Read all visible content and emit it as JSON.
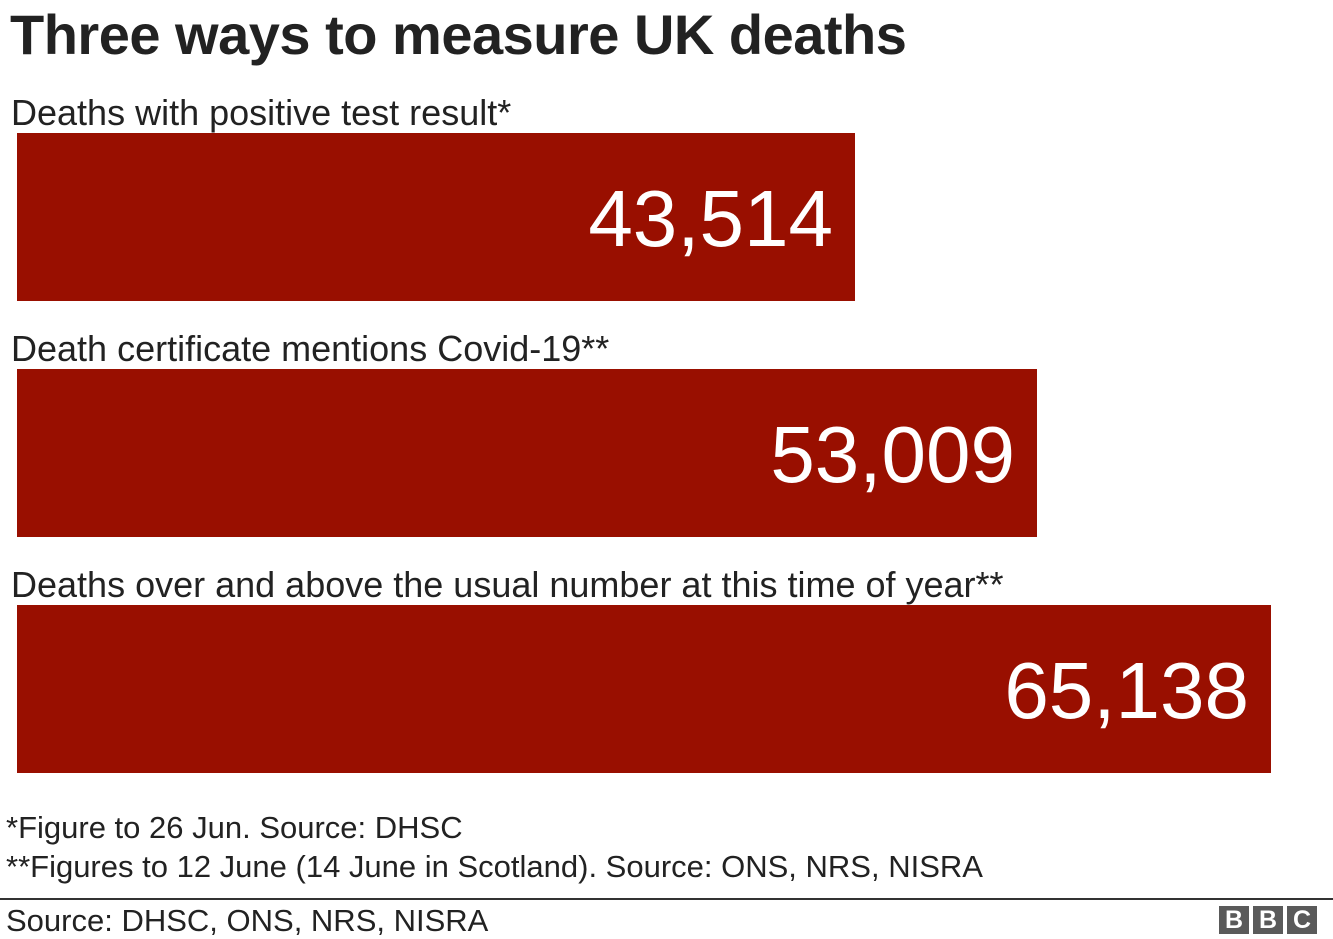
{
  "chart_data": {
    "type": "bar",
    "orientation": "horizontal",
    "title": "Three ways to measure UK deaths",
    "categories": [
      "Deaths with positive test result*",
      "Death certificate mentions Covid-19**",
      "Deaths over and above the usual number at this time of year**"
    ],
    "values": [
      43514,
      53009,
      65138
    ],
    "value_labels": [
      "43,514",
      "53,009",
      "65,138"
    ],
    "xlabel": "",
    "ylabel": "",
    "xlim": [
      0,
      68000
    ],
    "grid": false,
    "bar_color": "#990f00"
  },
  "footnotes": [
    "*Figure to 26 Jun. Source: DHSC",
    "**Figures to 12 June (14 June in Scotland). Source: ONS, NRS, NISRA"
  ],
  "source": "Source: DHSC, ONS, NRS, NISRA",
  "logo": {
    "letters": [
      "B",
      "B",
      "C"
    ],
    "color": "#5a5a5a"
  }
}
